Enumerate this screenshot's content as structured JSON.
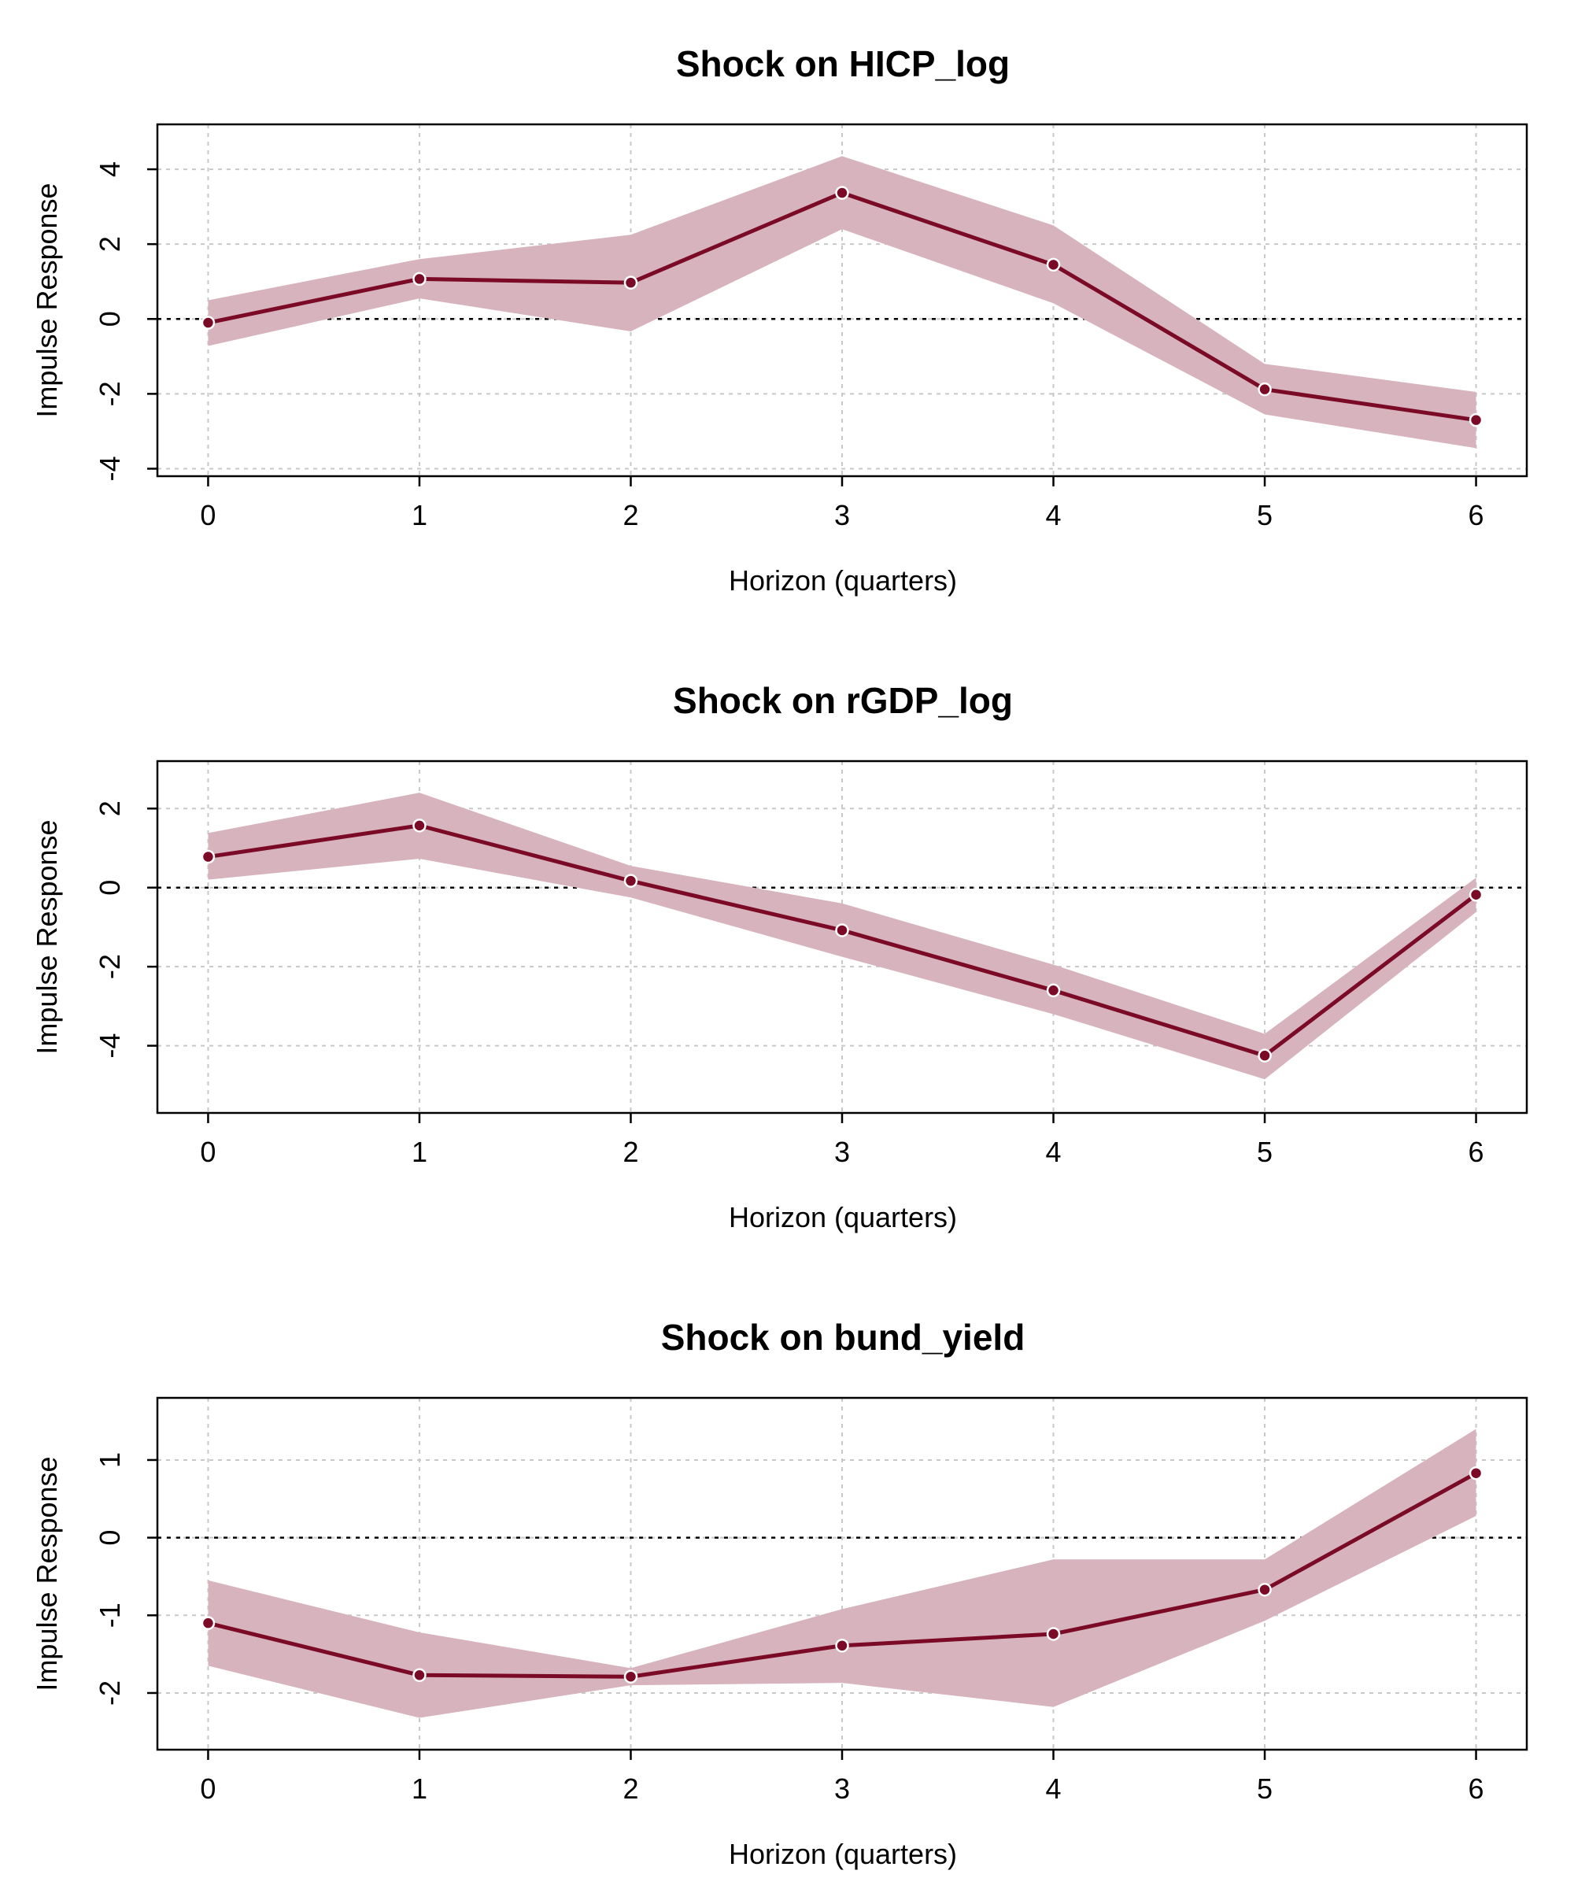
{
  "colors": {
    "line": "#7b0a26",
    "band": "#d6b3bd",
    "grid": "#c8c8c8",
    "zero_line": "#000000"
  },
  "chart_data": [
    {
      "type": "line",
      "title": "Shock on HICP_log",
      "xlabel": "Horizon (quarters)",
      "ylabel": "Impulse Response",
      "x": [
        0,
        1,
        2,
        3,
        4,
        5,
        6
      ],
      "x_ticks": [
        "0",
        "1",
        "2",
        "3",
        "4",
        "5",
        "6"
      ],
      "y_ticks": [
        -4,
        -2,
        0,
        2,
        4
      ],
      "y_tick_labels": [
        "-4",
        "-2",
        "0",
        "2",
        "4"
      ],
      "xlim": [
        -0.24,
        6.24
      ],
      "ylim": [
        -4.2,
        5.2
      ],
      "grid": true,
      "zero_line": true,
      "series": [
        {
          "values": [
            -0.1,
            1.07,
            0.97,
            3.37,
            1.45,
            -1.88,
            -2.7
          ],
          "lower": [
            -0.72,
            0.55,
            -0.33,
            2.4,
            0.42,
            -2.55,
            -3.45
          ],
          "upper": [
            0.5,
            1.6,
            2.25,
            4.35,
            2.5,
            -1.2,
            -1.95
          ]
        }
      ]
    },
    {
      "type": "line",
      "title": "Shock on rGDP_log",
      "xlabel": "Horizon (quarters)",
      "ylabel": "Impulse Response",
      "x": [
        0,
        1,
        2,
        3,
        4,
        5,
        6
      ],
      "x_ticks": [
        "0",
        "1",
        "2",
        "3",
        "4",
        "5",
        "6"
      ],
      "y_ticks": [
        -4,
        -2,
        0,
        2
      ],
      "y_tick_labels": [
        "-4",
        "-2",
        "0",
        "2"
      ],
      "xlim": [
        -0.24,
        6.24
      ],
      "ylim": [
        -5.7,
        3.2
      ],
      "grid": true,
      "zero_line": true,
      "series": [
        {
          "values": [
            0.78,
            1.57,
            0.17,
            -1.08,
            -2.6,
            -4.25,
            -0.18
          ],
          "lower": [
            0.2,
            0.73,
            -0.25,
            -1.75,
            -3.2,
            -4.85,
            -0.62
          ],
          "upper": [
            1.38,
            2.4,
            0.55,
            -0.4,
            -1.95,
            -3.7,
            0.25
          ]
        }
      ]
    },
    {
      "type": "line",
      "title": "Shock on bund_yield",
      "xlabel": "Horizon (quarters)",
      "ylabel": "Impulse Response",
      "x": [
        0,
        1,
        2,
        3,
        4,
        5,
        6
      ],
      "x_ticks": [
        "0",
        "1",
        "2",
        "3",
        "4",
        "5",
        "6"
      ],
      "y_ticks": [
        -2,
        -1,
        0,
        1
      ],
      "y_tick_labels": [
        "-2",
        "-1",
        "0",
        "1"
      ],
      "xlim": [
        -0.24,
        6.24
      ],
      "ylim": [
        -2.73,
        1.8
      ],
      "grid": true,
      "zero_line": true,
      "series": [
        {
          "values": [
            -1.1,
            -1.77,
            -1.79,
            -1.39,
            -1.24,
            -0.67,
            0.83
          ],
          "lower": [
            -1.65,
            -2.32,
            -1.9,
            -1.87,
            -2.18,
            -1.07,
            0.28
          ],
          "upper": [
            -0.55,
            -1.22,
            -1.68,
            -0.92,
            -0.28,
            -0.28,
            1.4
          ]
        }
      ]
    }
  ]
}
